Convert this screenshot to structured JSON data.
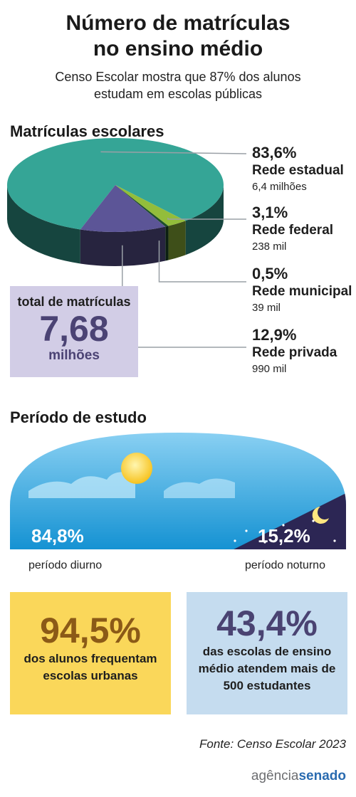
{
  "header": {
    "title_line1": "Número de matrículas",
    "title_line2": "no ensino médio",
    "subtitle_line1": "Censo Escolar mostra que 87% dos alunos",
    "subtitle_line2": "estudam em escolas públicas"
  },
  "matriculas": {
    "section_title": "Matrículas escolares",
    "items": [
      {
        "pct": "83,6%",
        "label": "Rede estadual",
        "value": "6,4 milhões"
      },
      {
        "pct": "3,1%",
        "label": "Rede federal",
        "value": "238 mil"
      },
      {
        "pct": "0,5%",
        "label": "Rede municipal",
        "value": "39 mil"
      },
      {
        "pct": "12,9%",
        "label": "Rede privada",
        "value": "990 mil"
      }
    ],
    "total": {
      "label": "total de matrículas",
      "value": "7,68",
      "unit": "milhões"
    }
  },
  "periodo": {
    "section_title": "Período de estudo",
    "diurno": {
      "pct": "84,8%",
      "label": "período diurno"
    },
    "noturno": {
      "pct": "15,2%",
      "label": "período noturno"
    }
  },
  "highlights": {
    "urbanas": {
      "pct": "94,5%",
      "line1": "dos alunos frequentam",
      "line2": "escolas urbanas"
    },
    "escolas": {
      "pct": "43,4%",
      "line1": "das escolas de ensino",
      "line2": "médio atendem mais de",
      "line3": "500 estudantes"
    }
  },
  "footer": {
    "source": "Fonte: Censo Escolar 2023",
    "logo_part1": "agência",
    "logo_part2": "senado"
  },
  "colors": {
    "estadual": "#35a596",
    "federal": "#93bd3b",
    "municipal": "#1d4d2b",
    "privada": "#5c5597",
    "sky": "#1a9fdc",
    "night": "#2c2654",
    "yellow_box": "#fad75a",
    "blue_box": "#c5dcef"
  },
  "chart_data": [
    {
      "type": "pie",
      "categories": [
        "Rede estadual",
        "Rede federal",
        "Rede municipal",
        "Rede privada"
      ],
      "values": [
        83.6,
        3.1,
        0.5,
        12.9
      ],
      "unit": "%",
      "counts": [
        "6,4 milhões",
        "238 mil",
        "39 mil",
        "990 mil"
      ],
      "title": "Matrículas escolares"
    },
    {
      "type": "pie",
      "categories": [
        "período diurno",
        "período noturno"
      ],
      "values": [
        84.8,
        15.2
      ],
      "unit": "%",
      "title": "Período de estudo"
    }
  ]
}
